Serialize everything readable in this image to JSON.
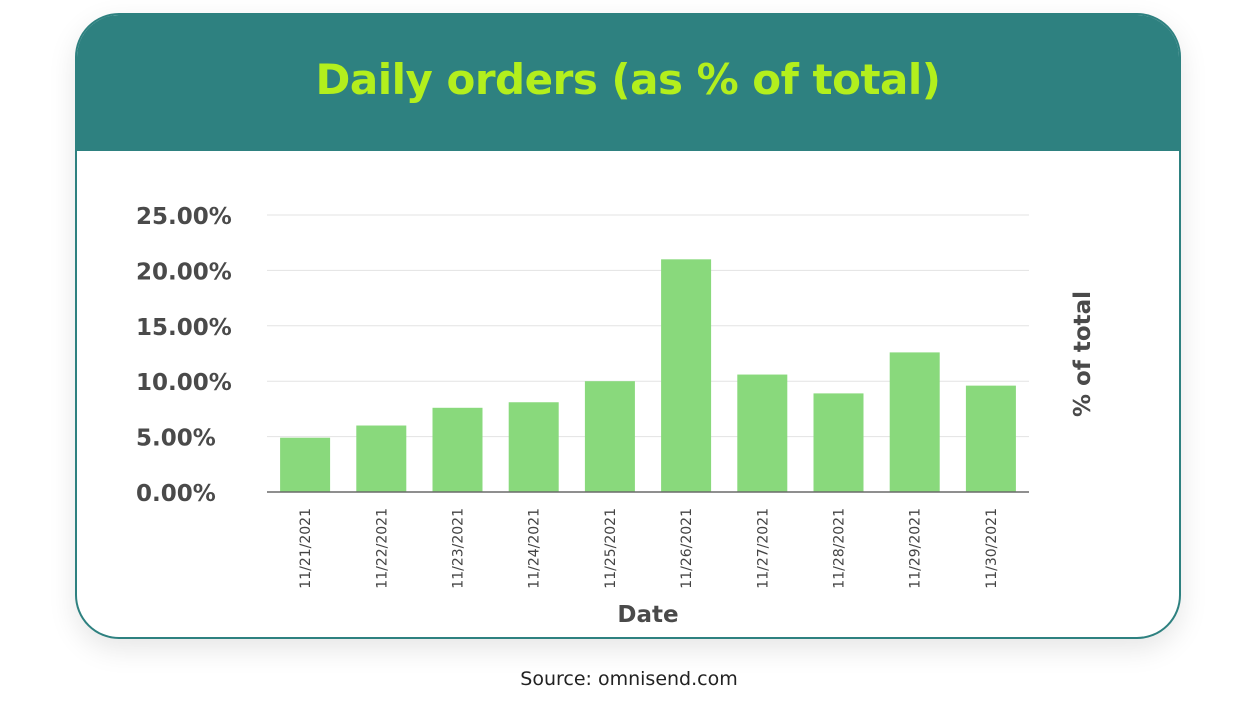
{
  "chart_data": {
    "type": "bar",
    "title": "Daily orders (as % of total)",
    "xlabel": "Date",
    "ylabel": "% of total",
    "categories": [
      "11/21/2021",
      "11/22/2021",
      "11/23/2021",
      "11/24/2021",
      "11/25/2021",
      "11/26/2021",
      "11/27/2021",
      "11/28/2021",
      "11/29/2021",
      "11/30/2021"
    ],
    "values": [
      4.9,
      6.0,
      7.6,
      8.1,
      10.0,
      21.0,
      10.6,
      8.9,
      12.6,
      9.6
    ],
    "ylim": [
      0,
      25
    ],
    "yticks": [
      "0.00%",
      "5.00%",
      "10.00%",
      "15.00%",
      "20.00%",
      "25.00%"
    ],
    "grid": true,
    "colors": {
      "bar": "#89d97c",
      "header": "#2e8180",
      "title": "#b3ef1d"
    }
  },
  "source": "Source: omnisend.com"
}
